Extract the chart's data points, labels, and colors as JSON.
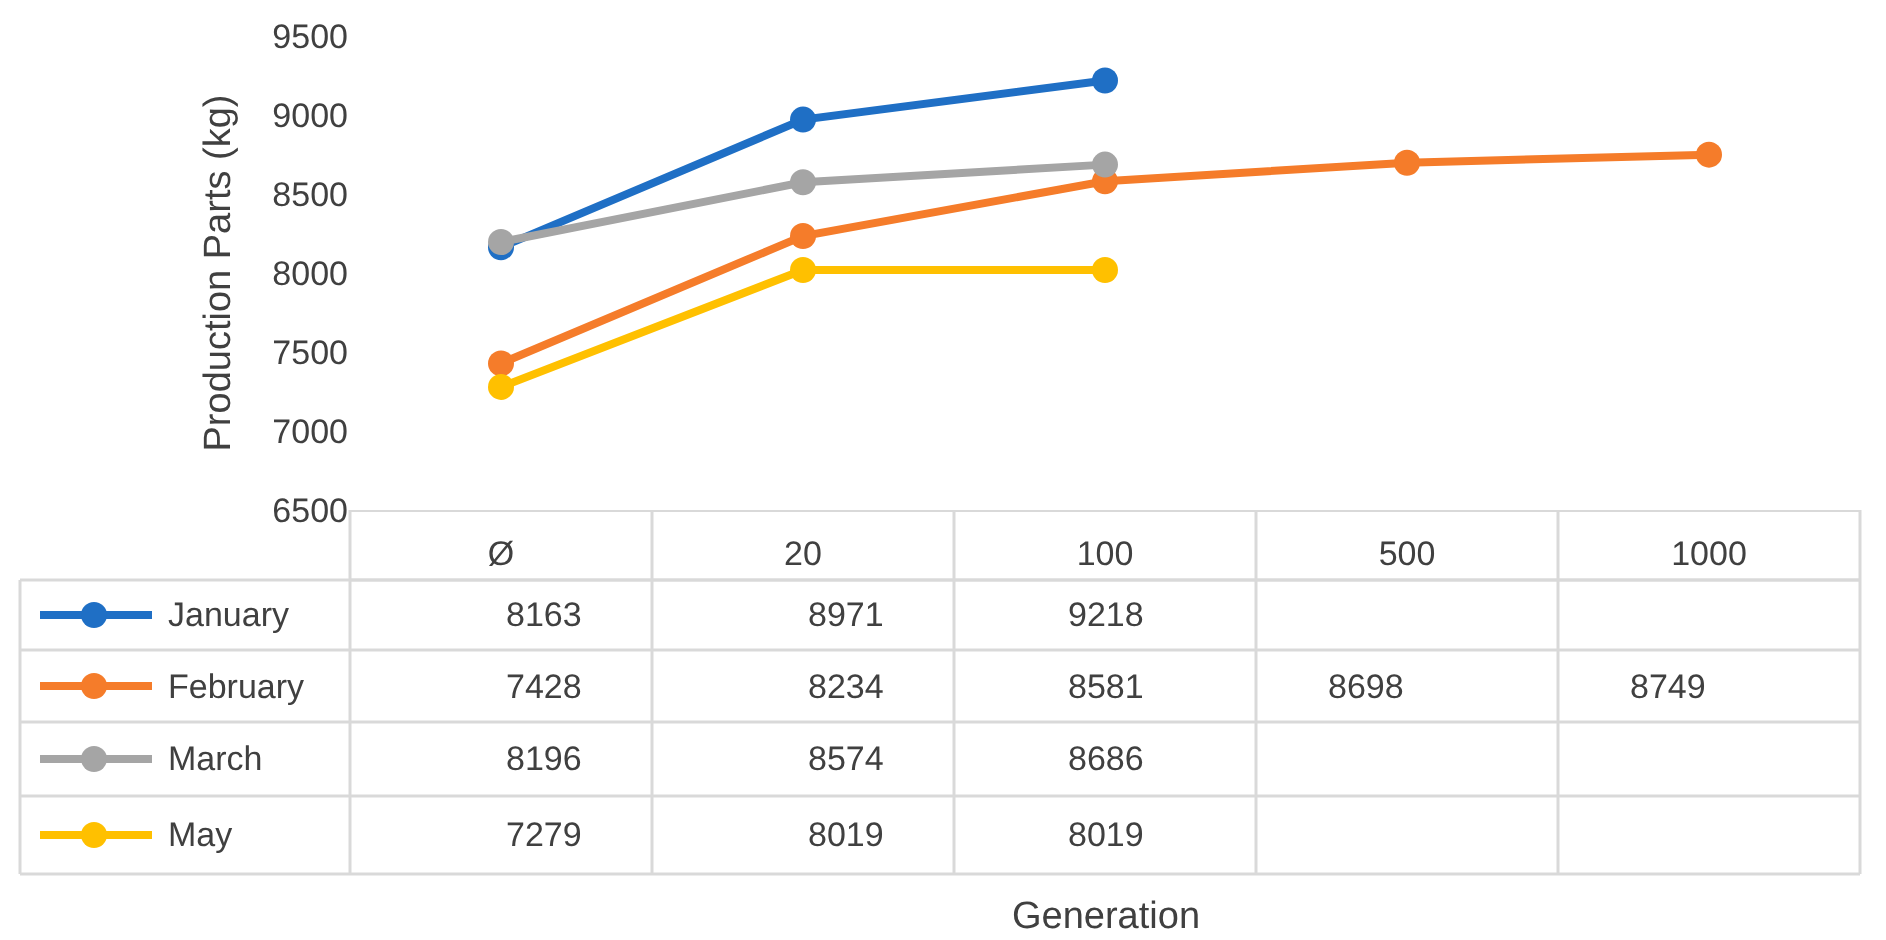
{
  "chart_data": {
    "type": "line",
    "annotations": [
      "Generation"
    ],
    "ylabel": "Production Parts (kg)",
    "categories": [
      "Ø",
      "20",
      "100",
      "500",
      "1000"
    ],
    "series": [
      {
        "name": "January",
        "color": "#1f6fc5",
        "values": [
          8163,
          8971,
          9218,
          null,
          null
        ]
      },
      {
        "name": "February",
        "color": "#f57c2a",
        "values": [
          7428,
          8234,
          8581,
          8698,
          8749
        ]
      },
      {
        "name": "March",
        "color": "#a5a5a5",
        "values": [
          8196,
          8574,
          8686,
          null,
          null
        ]
      },
      {
        "name": "May",
        "color": "#ffc000",
        "values": [
          7279,
          8019,
          8019,
          null,
          null
        ]
      }
    ],
    "ylim": [
      6500,
      9500
    ],
    "yticks": [
      6500,
      7000,
      7500,
      8000,
      8500,
      9000,
      9500
    ],
    "legend": "bottom left",
    "marker": "circle",
    "line_style": "solid",
    "data_labels": true
  }
}
